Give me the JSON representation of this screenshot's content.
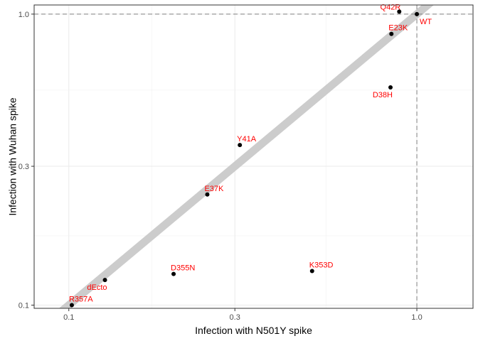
{
  "chart_data": {
    "type": "scatter",
    "title": "",
    "xlabel": "Infection with N501Y spike",
    "ylabel": "Infection with Wuhan spike",
    "xscale": "log",
    "yscale": "log",
    "xlim": [
      0.0795,
      1.45
    ],
    "ylim": [
      0.0975,
      1.075
    ],
    "x_ticks": [
      {
        "value": 0.1,
        "label": "0.1"
      },
      {
        "value": 0.3,
        "label": "0.3"
      },
      {
        "value": 1.0,
        "label": "1.0"
      }
    ],
    "y_ticks": [
      {
        "value": 0.1,
        "label": "0.1"
      },
      {
        "value": 0.3,
        "label": "0.3"
      },
      {
        "value": 1.0,
        "label": "1.0"
      }
    ],
    "x_minor_ticks": [
      0.173,
      0.548
    ],
    "y_minor_ticks": [
      0.173,
      0.548
    ],
    "grid": true,
    "reference_lines": [
      {
        "axis": "x",
        "value": 1.0,
        "style": "dashed"
      },
      {
        "axis": "y",
        "value": 1.0,
        "style": "dashed"
      }
    ],
    "trend_line": {
      "from": [
        0.075,
        0.075
      ],
      "to": [
        1.5,
        1.5
      ],
      "color": "#cccccc"
    },
    "point_color": "#000000",
    "label_color": "#ff0000",
    "points": [
      {
        "label": "WT",
        "x": 1.0,
        "y": 1.0,
        "label_pos": "below-right"
      },
      {
        "label": "Q42R",
        "x": 0.89,
        "y": 1.02,
        "label_pos": "left"
      },
      {
        "label": "E23K",
        "x": 0.845,
        "y": 0.855,
        "label_pos": "above-right"
      },
      {
        "label": "D38H",
        "x": 0.84,
        "y": 0.56,
        "label_pos": "below-left"
      },
      {
        "label": "Y41A",
        "x": 0.31,
        "y": 0.355,
        "label_pos": "above-right"
      },
      {
        "label": "E37K",
        "x": 0.25,
        "y": 0.24,
        "label_pos": "above-right"
      },
      {
        "label": "D355N",
        "x": 0.2,
        "y": 0.128,
        "label_pos": "above-right"
      },
      {
        "label": "K353D",
        "x": 0.5,
        "y": 0.131,
        "label_pos": "above-right"
      },
      {
        "label": "dEcto",
        "x": 0.127,
        "y": 0.122,
        "label_pos": "below-left"
      },
      {
        "label": "R357A",
        "x": 0.102,
        "y": 0.1,
        "label_pos": "above-right"
      }
    ]
  }
}
